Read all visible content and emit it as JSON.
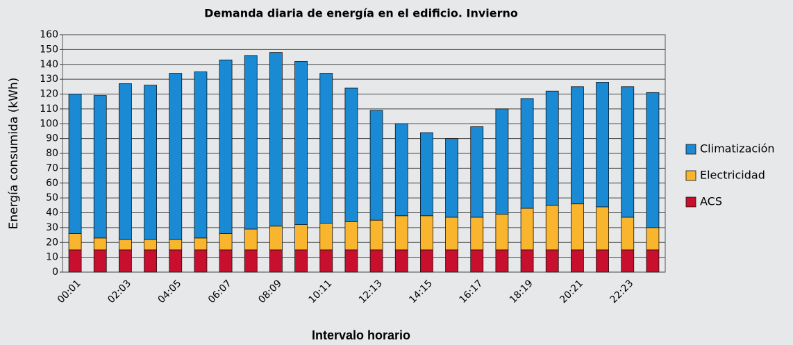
{
  "chart_data": {
    "type": "stacked_bar",
    "title": "Demanda diaria de energía en el edificio. Invierno",
    "x_label": "Intervalo horario",
    "y_label": "Energía consumida (kWh)",
    "categories": [
      "00:01",
      null,
      "02:03",
      null,
      "04:05",
      null,
      "06:07",
      null,
      "08:09",
      null,
      "10:11",
      null,
      "12:13",
      null,
      "14:15",
      null,
      "16:17",
      null,
      "18:19",
      null,
      "20:21",
      null,
      "22:23",
      null
    ],
    "series": [
      {
        "name": "ACS",
        "color": "#c8102e",
        "values": [
          15,
          15,
          15,
          15,
          15,
          15,
          15,
          15,
          15,
          15,
          15,
          15,
          15,
          15,
          15,
          15,
          15,
          15,
          15,
          15,
          15,
          15,
          15,
          15
        ]
      },
      {
        "name": "Electricidad",
        "color": "#f8b52d",
        "values": [
          11,
          8,
          7,
          7,
          7,
          8,
          11,
          14,
          16,
          17,
          18,
          19,
          20,
          23,
          23,
          22,
          22,
          24,
          28,
          30,
          31,
          29,
          22,
          15
        ]
      },
      {
        "name": "Climatización",
        "color": "#1a8ad4",
        "values": [
          94,
          96,
          105,
          104,
          112,
          112,
          117,
          117,
          117,
          110,
          101,
          90,
          74,
          62,
          56,
          53,
          61,
          71,
          74,
          77,
          79,
          84,
          88,
          91
        ]
      }
    ],
    "ylim": [
      0,
      160
    ],
    "yticks": [
      0,
      10,
      20,
      30,
      40,
      50,
      60,
      70,
      80,
      90,
      100,
      110,
      120,
      130,
      140,
      150,
      160
    ],
    "grid": true,
    "legend": "right"
  }
}
